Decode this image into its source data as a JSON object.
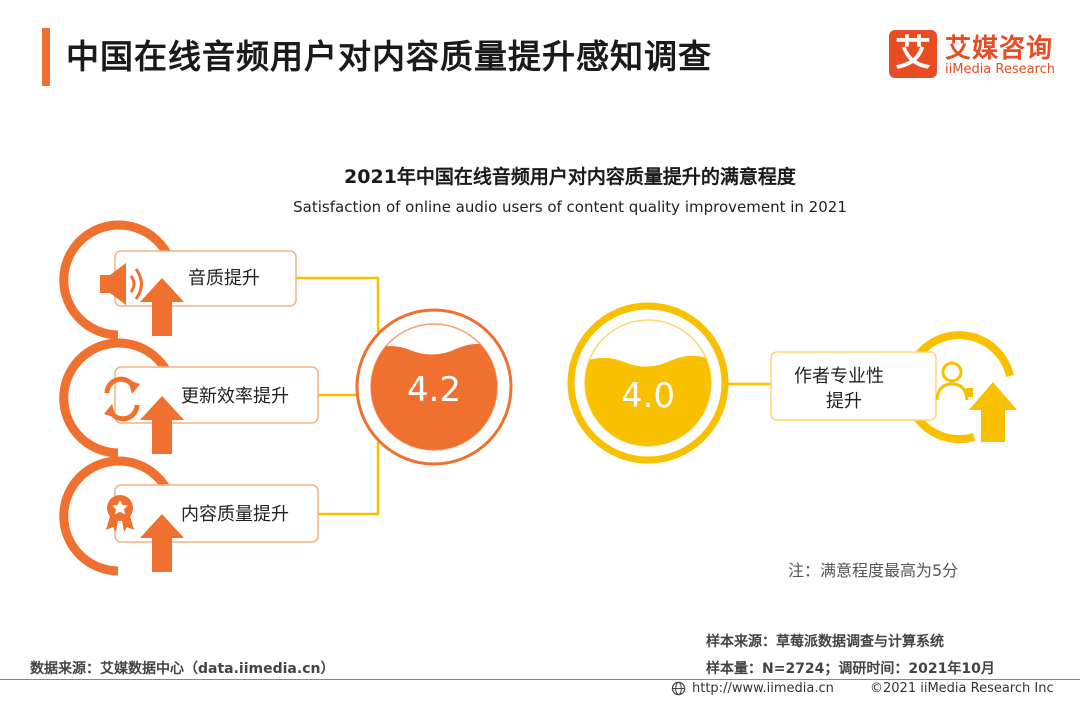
{
  "header": {
    "title": "中国在线音频用户对内容质量提升感知调查",
    "logo_mark": "艾",
    "logo_cn": "艾媒咨询",
    "logo_en": "iiMedia Research"
  },
  "chart": {
    "title": "2021年中国在线音频用户对内容质量提升的满意程度",
    "subtitle": "Satisfaction of online audio users of content quality improvement in 2021",
    "left_items": [
      {
        "label": "音质提升",
        "icon": "speaker-icon"
      },
      {
        "label": "更新效率提升",
        "icon": "refresh-icon"
      },
      {
        "label": "内容质量提升",
        "icon": "medal-icon"
      }
    ],
    "left_score": "4.2",
    "right_score": "4.0",
    "right_item": {
      "label_line1": "作者专业性",
      "label_line2": "提升",
      "icon": "user-icon"
    },
    "note": "注：满意程度最高为5分"
  },
  "colors": {
    "orange": "#f07030",
    "yellow": "#f9c000",
    "brand_red": "#e84c22"
  },
  "footer": {
    "sample_source": "样本来源：草莓派数据调查与计算系统",
    "sample_size": "样本量：N=2724；调研时间：2021年10月",
    "data_source": "数据来源：艾媒数据中心（data.iimedia.cn）",
    "url": "http://www.iimedia.cn",
    "copyright": "©2021  iiMedia Research  Inc"
  }
}
